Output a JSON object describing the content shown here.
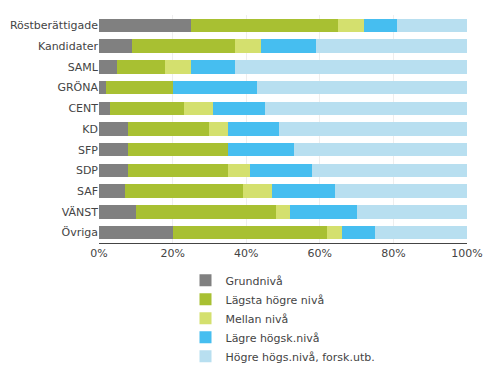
{
  "chart_data": {
    "type": "bar",
    "orientation": "horizontal",
    "stacked": true,
    "categories": [
      "Röstberättigade",
      "Kandidater",
      "SAML",
      "GRÖNA",
      "CENT",
      "KD",
      "SFP",
      "SDP",
      "SAF",
      "VÄNST",
      "Övriga"
    ],
    "series": [
      {
        "name": "Grundnivå",
        "color": "#808080",
        "values": [
          25,
          9,
          5,
          2,
          3,
          8,
          8,
          8,
          7,
          10,
          20
        ]
      },
      {
        "name": "Lägsta högre nivå",
        "color": "#a8c032",
        "values": [
          40,
          28,
          13,
          18,
          20,
          22,
          27,
          27,
          32,
          38,
          42
        ]
      },
      {
        "name": "Mellan nivå",
        "color": "#d4e06e",
        "values": [
          7,
          7,
          7,
          0,
          8,
          5,
          0,
          6,
          8,
          4,
          4
        ]
      },
      {
        "name": "Lägre högsk.nivå",
        "color": "#46bef0",
        "values": [
          9,
          15,
          12,
          23,
          14,
          14,
          18,
          17,
          17,
          18,
          9
        ]
      },
      {
        "name": "Högre högs.nivå, forsk.utb.",
        "color": "#b8dff0",
        "values": [
          19,
          41,
          63,
          57,
          55,
          51,
          47,
          42,
          36,
          30,
          25
        ]
      }
    ],
    "xlim": [
      0,
      100
    ],
    "xticks": [
      {
        "value": 0,
        "label": "0%"
      },
      {
        "value": 20,
        "label": "20%"
      },
      {
        "value": 40,
        "label": "40%"
      },
      {
        "value": 60,
        "label": "60%"
      },
      {
        "value": 80,
        "label": "80%"
      },
      {
        "value": 100,
        "label": "100%"
      }
    ],
    "grid": true,
    "legend": "bottom"
  }
}
